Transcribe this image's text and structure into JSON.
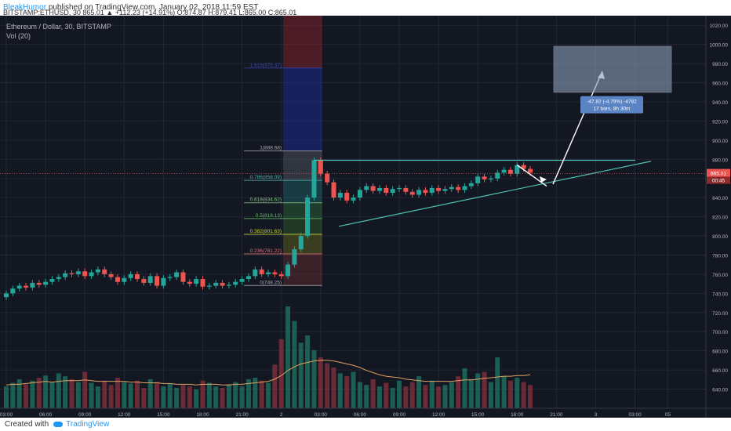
{
  "header": {
    "author": "BleakHumor",
    "published_text": "published on TradingView.com, January 02, 2018 11:59 EST",
    "quote": "BITSTAMP:ETHUSD, 30 865.01 ▲ +112.23 (+14.91%) O:874.87 H:879.41 L:865.00 C:865.01"
  },
  "footer": {
    "created_with": "Created with",
    "brand": "TradingView"
  },
  "colors": {
    "background": "#131722",
    "grid": "#222733",
    "up": "#26a69a",
    "down": "#ef5350",
    "trend": "#4ec3b5",
    "measure_box": "#8c9cb5",
    "measure_label": "#5b84c4"
  },
  "chart_data": {
    "type": "candlestick",
    "title": "Ethereum / Dollar, 30, BITSTAMP",
    "indicator_label": "Vol (20)",
    "ylim": [
      620,
      1030
    ],
    "y_ticks": [
      "1020.00",
      "1000.00",
      "980.00",
      "960.00",
      "940.00",
      "920.00",
      "900.00",
      "880.00",
      "860.00",
      "840.00",
      "820.00",
      "800.00",
      "780.00",
      "760.00",
      "740.00",
      "720.00",
      "700.00",
      "680.00",
      "660.00",
      "640.00"
    ],
    "x_ticks": [
      {
        "label": "03:00",
        "bar": 0
      },
      {
        "label": "06:00",
        "bar": 6
      },
      {
        "label": "09:00",
        "bar": 12
      },
      {
        "label": "12:00",
        "bar": 18
      },
      {
        "label": "15:00",
        "bar": 24
      },
      {
        "label": "18:00",
        "bar": 30
      },
      {
        "label": "21:00",
        "bar": 36
      },
      {
        "label": "2",
        "bar": 42
      },
      {
        "label": "03:00",
        "bar": 48
      },
      {
        "label": "06:00",
        "bar": 54
      },
      {
        "label": "09:00",
        "bar": 60
      },
      {
        "label": "12:00",
        "bar": 66
      },
      {
        "label": "15:00",
        "bar": 72
      },
      {
        "label": "18:00",
        "bar": 78
      },
      {
        "label": "21:00",
        "bar": 84
      },
      {
        "label": "3",
        "bar": 90
      },
      {
        "label": "03:00",
        "bar": 96
      },
      {
        "label": "05",
        "bar": 101
      }
    ],
    "last_price": "865.01",
    "countdown": "00:45",
    "closes": [
      740,
      745,
      748,
      746,
      751,
      749,
      752,
      755,
      757,
      761,
      760,
      763,
      758,
      762,
      765,
      760,
      757,
      752,
      756,
      760,
      755,
      751,
      758,
      748,
      756,
      757,
      762,
      752,
      750,
      755,
      747,
      748,
      751,
      748,
      749,
      752,
      755,
      758,
      765,
      760,
      762,
      760,
      758,
      770,
      786,
      800,
      840,
      879,
      865,
      856,
      840,
      845,
      837,
      840,
      848,
      852,
      847,
      850,
      845,
      849,
      850,
      846,
      843,
      848,
      845,
      850,
      847,
      849,
      851,
      848,
      852,
      855,
      862,
      859,
      860,
      866,
      869,
      865,
      874,
      870,
      866
    ],
    "volume": [
      30,
      35,
      40,
      33,
      38,
      42,
      45,
      36,
      48,
      44,
      40,
      36,
      50,
      35,
      30,
      38,
      32,
      42,
      36,
      34,
      38,
      28,
      40,
      36,
      30,
      34,
      28,
      32,
      30,
      26,
      38,
      35,
      30,
      28,
      33,
      36,
      30,
      40,
      42,
      38,
      35,
      60,
      95,
      140,
      120,
      90,
      100,
      80,
      70,
      62,
      56,
      48,
      44,
      50,
      36,
      32,
      40,
      30,
      35,
      28,
      38,
      30,
      36,
      44,
      32,
      38,
      30,
      32,
      36,
      44,
      55,
      40,
      48,
      50,
      36,
      70,
      44,
      38,
      42,
      36,
      32
    ],
    "volume_ma": [
      32,
      33,
      33,
      34,
      35,
      36,
      37,
      36,
      37,
      38,
      38,
      38,
      39,
      38,
      37,
      37,
      37,
      37,
      37,
      36,
      36,
      35,
      35,
      35,
      34,
      34,
      33,
      33,
      33,
      32,
      33,
      33,
      33,
      32,
      32,
      33,
      33,
      34,
      35,
      36,
      37,
      40,
      45,
      52,
      57,
      61,
      63,
      65,
      66,
      66,
      65,
      63,
      61,
      59,
      56,
      52,
      49,
      46,
      44,
      43,
      42,
      40,
      39,
      38,
      37,
      37,
      37,
      37,
      37,
      38,
      39,
      39,
      40,
      41,
      42,
      43,
      44,
      44,
      45,
      45,
      46
    ],
    "fibonacci": [
      {
        "level": "1",
        "price": 888.68,
        "label": "1(888.68)",
        "color": "#aaaaaa"
      },
      {
        "level": "0.786",
        "price": 858.09,
        "label": "0.786(858.09)",
        "color": "#4db6ac"
      },
      {
        "level": "0.618",
        "price": 834.62,
        "label": "0.618(834.62)",
        "color": "#81c784"
      },
      {
        "level": "0.5",
        "price": 818.13,
        "label": "0.5(818.13)",
        "color": "#66bb6a"
      },
      {
        "level": "0.382",
        "price": 801.63,
        "label": "0.382(801.63)",
        "color": "#cddc39"
      },
      {
        "level": "0.236",
        "price": 781.22,
        "label": "0.236(781.22)",
        "color": "#e57373"
      },
      {
        "level": "0",
        "price": 748.25,
        "label": "0(748.25)",
        "color": "#aaaaaa"
      },
      {
        "level": "1.618",
        "price": 975.37,
        "label": "1.618(975.37)",
        "color": "#3949ab"
      }
    ],
    "measure": {
      "line1": "-47.82 (-4.79%) -4782",
      "line2": "17 bars, 8h 30m",
      "box_price_top": 998,
      "box_price_bottom": 950
    }
  }
}
